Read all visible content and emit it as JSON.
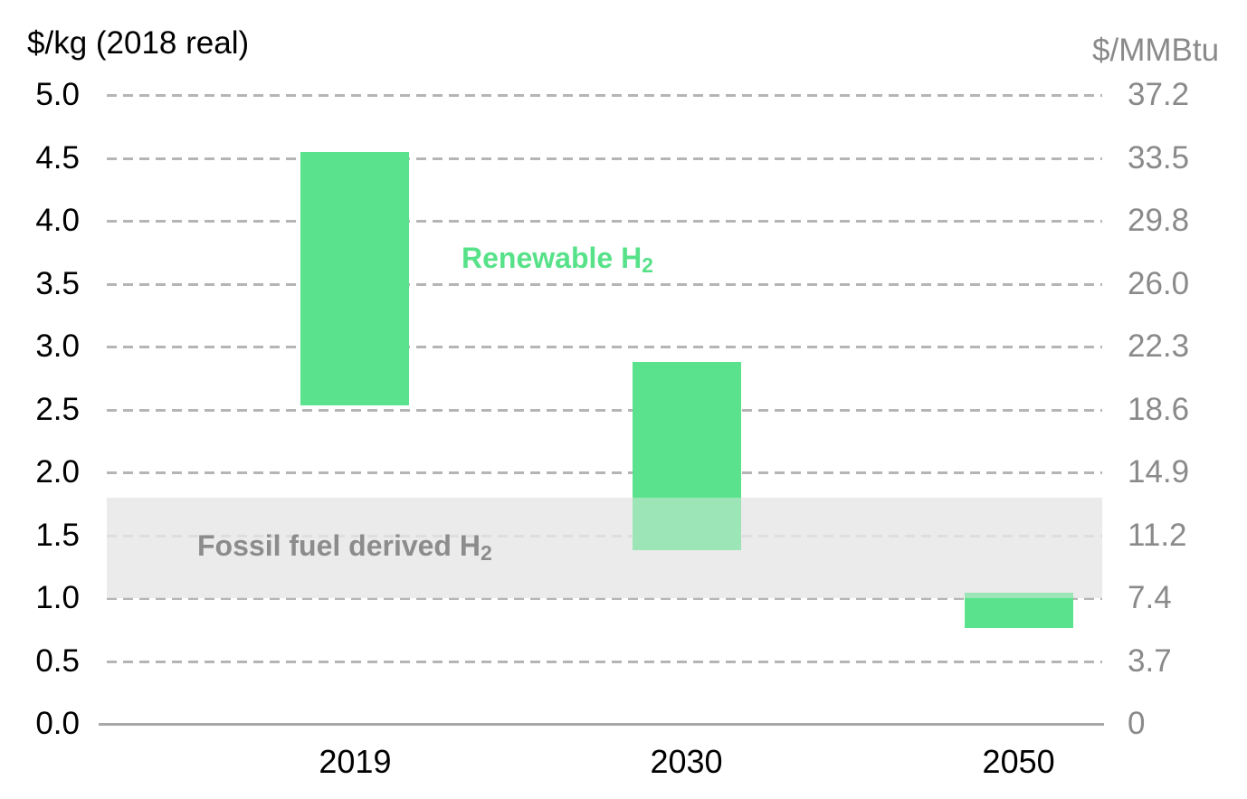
{
  "axes": {
    "left_title": "$/kg (2018 real)",
    "right_title": "$/MMBtu",
    "left_ticks": [
      "5.0",
      "4.5",
      "4.0",
      "3.5",
      "3.0",
      "2.5",
      "2.0",
      "1.5",
      "1.0",
      "0.5",
      "0.0"
    ],
    "right_ticks": [
      "37.2",
      "33.5",
      "29.8",
      "26.0",
      "22.3",
      "18.6",
      "14.9",
      "11.2",
      "7.4",
      "3.7",
      "0"
    ]
  },
  "chart_data": {
    "type": "bar",
    "subtype": "floating-range-columns",
    "title": "",
    "categories": [
      "2019",
      "2030",
      "2050"
    ],
    "series": [
      {
        "name": "Renewable H2",
        "label_text": "Renewable H",
        "label_sub": "2",
        "ranges": [
          {
            "low": 2.53,
            "high": 4.55
          },
          {
            "low": 1.38,
            "high": 2.88
          },
          {
            "low": 0.76,
            "high": 1.04
          }
        ]
      }
    ],
    "band": {
      "name": "Fossil fuel derived H2",
      "label_text": "Fossil fuel derived H",
      "label_sub": "2",
      "low": 1.0,
      "high": 1.8
    },
    "ylabel": "$/kg (2018 real)",
    "y2label": "$/MMBtu",
    "ylim": [
      0,
      5
    ],
    "y2lim": [
      0,
      37.2
    ],
    "ytick_step": 0.5,
    "grid": "horizontal-dashed",
    "legend_position": "inline-annotations"
  },
  "colors": {
    "bar_green": "#5be28c",
    "label_green": "#57e289",
    "band_gray": "#e8e8e8",
    "band_label_gray": "#8c8c8c",
    "grid_gray": "#b5b5b5",
    "axis_gray": "#a8a8a8",
    "right_text_gray": "#8a8a8a",
    "left_text_black": "#000000"
  }
}
